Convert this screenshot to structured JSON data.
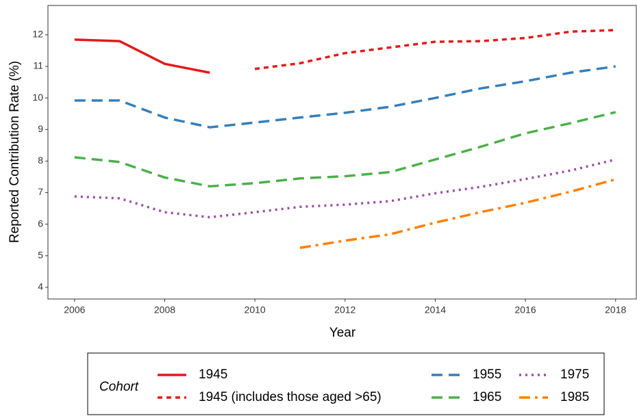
{
  "chart_data": {
    "type": "line",
    "x_label": "Year",
    "y_label": "Reported Contribution Rate (%)",
    "x": [
      2006,
      2007,
      2008,
      2009,
      2010,
      2011,
      2012,
      2013,
      2014,
      2015,
      2016,
      2017,
      2018
    ],
    "xlim": [
      2005.41,
      2018.46
    ],
    "xticks": [
      2006,
      2008,
      2010,
      2012,
      2014,
      2016,
      2018
    ],
    "ylim": [
      3.63,
      12.93
    ],
    "yticks": [
      4,
      5,
      6,
      7,
      8,
      9,
      10,
      11,
      12
    ],
    "legend_title": "Cohort",
    "legend_position": "bottom",
    "series": [
      {
        "name": "1945",
        "color": "#e41a1c",
        "dash": "solid",
        "values": [
          11.85,
          11.8,
          11.08,
          10.8,
          null,
          null,
          null,
          null,
          null,
          null,
          null,
          null,
          null
        ]
      },
      {
        "name": "1945 (includes those aged >65)",
        "color": "#e41a1c",
        "dash": "shortdash",
        "values": [
          null,
          null,
          null,
          null,
          10.92,
          11.1,
          11.42,
          11.6,
          11.78,
          11.8,
          11.9,
          12.1,
          12.15
        ]
      },
      {
        "name": "1955",
        "color": "#377eb8",
        "dash": "dashed",
        "values": [
          9.92,
          9.92,
          9.38,
          9.07,
          9.22,
          9.38,
          9.53,
          9.72,
          10.0,
          10.3,
          10.53,
          10.8,
          11.0
        ]
      },
      {
        "name": "1965",
        "color": "#4daf4a",
        "dash": "dashed",
        "values": [
          8.12,
          7.97,
          7.48,
          7.2,
          7.3,
          7.45,
          7.52,
          7.65,
          8.05,
          8.45,
          8.88,
          9.2,
          9.55
        ]
      },
      {
        "name": "1975",
        "color": "#984ea3",
        "dash": "dotted",
        "values": [
          6.88,
          6.82,
          6.38,
          6.22,
          6.38,
          6.55,
          6.62,
          6.73,
          6.98,
          7.18,
          7.43,
          7.7,
          8.05
        ]
      },
      {
        "name": "1985",
        "color": "#ff7f00",
        "dash": "dotdash",
        "values": [
          null,
          null,
          null,
          null,
          null,
          5.25,
          5.48,
          5.68,
          6.05,
          6.38,
          6.68,
          7.03,
          7.42
        ]
      }
    ]
  }
}
